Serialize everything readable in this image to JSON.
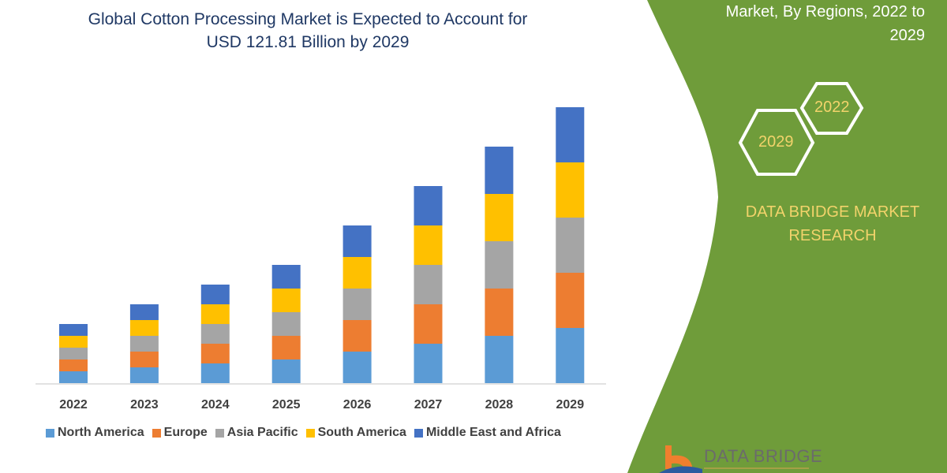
{
  "header": {
    "title_line1": "Global Cotton Processing Market is Expected to Account for",
    "title_line2": "USD 121.81 Billion by 2029"
  },
  "side_panel": {
    "title_line1": "Market, By Regions, 2022 to",
    "title_line2": "2029",
    "hex_start": "2022",
    "hex_end": "2029",
    "brand_line1": "DATA BRIDGE MARKET",
    "brand_line2": "RESEARCH",
    "logo_text": "DATA BRIDGE",
    "panel_color": "#6f9c3a",
    "accent_text_color": "#f2d36b"
  },
  "chart_data": {
    "type": "bar",
    "stacked": true,
    "title": "",
    "xlabel": "",
    "ylabel": "",
    "y_axis_shown": false,
    "grid": false,
    "legend_position": "bottom",
    "ylim": [
      0,
      360
    ],
    "categories": [
      "2022",
      "2023",
      "2024",
      "2025",
      "2026",
      "2027",
      "2028",
      "2029"
    ],
    "series": [
      {
        "name": "North America",
        "color": "#5b9bd5",
        "values": [
          15,
          20,
          25,
          30,
          40,
          50,
          60,
          70
        ]
      },
      {
        "name": "Europe",
        "color": "#ed7d31",
        "values": [
          15,
          20,
          25,
          30,
          40,
          50,
          60,
          70
        ]
      },
      {
        "name": "Asia Pacific",
        "color": "#a5a5a5",
        "values": [
          15,
          20,
          25,
          30,
          40,
          50,
          60,
          70
        ]
      },
      {
        "name": "South America",
        "color": "#ffc000",
        "values": [
          15,
          20,
          25,
          30,
          40,
          50,
          60,
          70
        ]
      },
      {
        "name": "Middle East and Africa",
        "color": "#4472c4",
        "values": [
          15,
          20,
          25,
          30,
          40,
          50,
          60,
          70
        ]
      }
    ]
  }
}
